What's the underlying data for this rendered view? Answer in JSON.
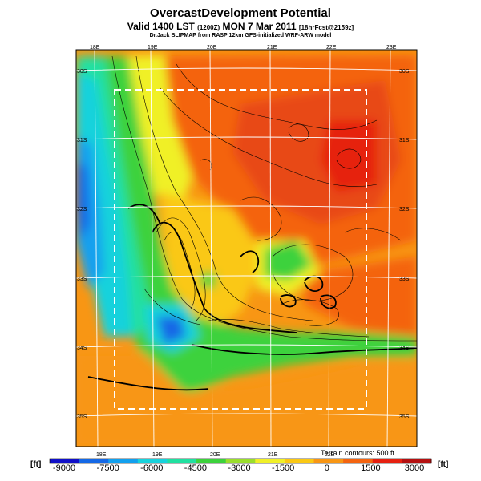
{
  "header": {
    "title": "OvercastDevelopment Potential",
    "subtitle_main": "Valid 1400 LST",
    "subtitle_zulu": "(1200Z)",
    "subtitle_date": "MON 7 Mar 2011",
    "subtitle_fcst": "[18hrFcst@2159z]",
    "credit": "Dr.Jack BLIPMAP from RASP 12km GFS-initialized WRF-ARW model"
  },
  "map": {
    "lon_labels_top": [
      "18E",
      "19E",
      "20E",
      "21E",
      "22E",
      "23E"
    ],
    "lon_labels_bottom": [
      "18E",
      "19E",
      "20E",
      "21E",
      "22E"
    ],
    "lat_labels_left": [
      "30S",
      "31S",
      "32S",
      "33S",
      "34S",
      "35S"
    ],
    "lat_labels_right": [
      "30S",
      "31S",
      "32S",
      "33S",
      "34S",
      "35S"
    ],
    "contour_note": "Terrain contours: 500 ft"
  },
  "colorbar": {
    "unit_left": "[ft]",
    "unit_right": "[ft]",
    "ticks": [
      "-9000",
      "-7500",
      "-6000",
      "-4500",
      "-3000",
      "-1500",
      "0",
      "1500",
      "3000"
    ],
    "colors": [
      "#1010c8",
      "#1468e6",
      "#12a0ee",
      "#18d2dc",
      "#20e0a0",
      "#3cd23c",
      "#9ade2c",
      "#f0f028",
      "#fac814",
      "#f89614",
      "#f46410",
      "#e62010",
      "#b41010"
    ]
  }
}
